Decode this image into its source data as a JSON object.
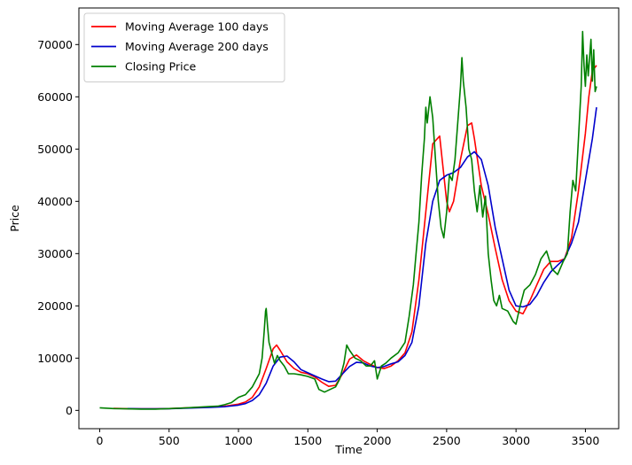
{
  "chart_data": {
    "type": "line",
    "title": "",
    "xlabel": "Time",
    "ylabel": "Price",
    "xlim": [
      -150,
      3740
    ],
    "ylim": [
      -3500,
      77000
    ],
    "xticks": [
      0,
      500,
      1000,
      1500,
      2000,
      2500,
      3000,
      3500
    ],
    "yticks": [
      0,
      10000,
      20000,
      30000,
      40000,
      50000,
      60000,
      70000
    ],
    "legend_position": "top-left",
    "grid": false,
    "series": [
      {
        "name": "Moving Average 100 days",
        "color": "#ff0000",
        "points": [
          [
            100,
            400
          ],
          [
            200,
            330
          ],
          [
            300,
            300
          ],
          [
            400,
            300
          ],
          [
            500,
            350
          ],
          [
            600,
            450
          ],
          [
            700,
            550
          ],
          [
            800,
            650
          ],
          [
            900,
            800
          ],
          [
            1000,
            1200
          ],
          [
            1050,
            1600
          ],
          [
            1100,
            2500
          ],
          [
            1150,
            4500
          ],
          [
            1200,
            8000
          ],
          [
            1250,
            11800
          ],
          [
            1275,
            12500
          ],
          [
            1300,
            11500
          ],
          [
            1350,
            9300
          ],
          [
            1400,
            8000
          ],
          [
            1450,
            7300
          ],
          [
            1500,
            7000
          ],
          [
            1550,
            6400
          ],
          [
            1600,
            5400
          ],
          [
            1650,
            4600
          ],
          [
            1700,
            4800
          ],
          [
            1750,
            7000
          ],
          [
            1800,
            9800
          ],
          [
            1850,
            10600
          ],
          [
            1900,
            9500
          ],
          [
            1950,
            8800
          ],
          [
            2000,
            8200
          ],
          [
            2050,
            8000
          ],
          [
            2100,
            8500
          ],
          [
            2150,
            9500
          ],
          [
            2200,
            11000
          ],
          [
            2250,
            15000
          ],
          [
            2300,
            25000
          ],
          [
            2350,
            38000
          ],
          [
            2400,
            51000
          ],
          [
            2450,
            52500
          ],
          [
            2500,
            40000
          ],
          [
            2520,
            38000
          ],
          [
            2550,
            40000
          ],
          [
            2600,
            48000
          ],
          [
            2650,
            54500
          ],
          [
            2680,
            55000
          ],
          [
            2700,
            52000
          ],
          [
            2750,
            43000
          ],
          [
            2800,
            37500
          ],
          [
            2850,
            31000
          ],
          [
            2900,
            25000
          ],
          [
            2950,
            21000
          ],
          [
            3000,
            19000
          ],
          [
            3050,
            18500
          ],
          [
            3100,
            21000
          ],
          [
            3150,
            24000
          ],
          [
            3200,
            27000
          ],
          [
            3250,
            28500
          ],
          [
            3300,
            28500
          ],
          [
            3350,
            29000
          ],
          [
            3400,
            33000
          ],
          [
            3450,
            42000
          ],
          [
            3500,
            53000
          ],
          [
            3525,
            60000
          ],
          [
            3550,
            65000
          ],
          [
            3580,
            66000
          ]
        ]
      },
      {
        "name": "Moving Average 200 days",
        "color": "#0000cc",
        "points": [
          [
            200,
            350
          ],
          [
            300,
            310
          ],
          [
            400,
            300
          ],
          [
            500,
            330
          ],
          [
            600,
            400
          ],
          [
            700,
            480
          ],
          [
            800,
            580
          ],
          [
            900,
            700
          ],
          [
            1000,
            1000
          ],
          [
            1050,
            1300
          ],
          [
            1100,
            1900
          ],
          [
            1150,
            3000
          ],
          [
            1200,
            5200
          ],
          [
            1250,
            8500
          ],
          [
            1300,
            10200
          ],
          [
            1350,
            10400
          ],
          [
            1400,
            9300
          ],
          [
            1450,
            7800
          ],
          [
            1500,
            7200
          ],
          [
            1550,
            6600
          ],
          [
            1600,
            6000
          ],
          [
            1650,
            5500
          ],
          [
            1700,
            5600
          ],
          [
            1750,
            7000
          ],
          [
            1800,
            8400
          ],
          [
            1850,
            9200
          ],
          [
            1900,
            9100
          ],
          [
            1950,
            8500
          ],
          [
            2000,
            8200
          ],
          [
            2050,
            8400
          ],
          [
            2100,
            8900
          ],
          [
            2150,
            9300
          ],
          [
            2200,
            10500
          ],
          [
            2250,
            13000
          ],
          [
            2300,
            20000
          ],
          [
            2350,
            32000
          ],
          [
            2400,
            40000
          ],
          [
            2450,
            44000
          ],
          [
            2500,
            45000
          ],
          [
            2550,
            45500
          ],
          [
            2600,
            46500
          ],
          [
            2650,
            48500
          ],
          [
            2700,
            49500
          ],
          [
            2750,
            48000
          ],
          [
            2800,
            43000
          ],
          [
            2850,
            35000
          ],
          [
            2900,
            29000
          ],
          [
            2950,
            23000
          ],
          [
            3000,
            20000
          ],
          [
            3050,
            19800
          ],
          [
            3100,
            20300
          ],
          [
            3150,
            22000
          ],
          [
            3200,
            24500
          ],
          [
            3250,
            26500
          ],
          [
            3300,
            27800
          ],
          [
            3350,
            29000
          ],
          [
            3400,
            32000
          ],
          [
            3450,
            36000
          ],
          [
            3500,
            44000
          ],
          [
            3550,
            52000
          ],
          [
            3580,
            58000
          ]
        ]
      },
      {
        "name": "Closing Price",
        "color": "#008000",
        "points": [
          [
            0,
            500
          ],
          [
            100,
            350
          ],
          [
            200,
            300
          ],
          [
            300,
            250
          ],
          [
            400,
            250
          ],
          [
            500,
            350
          ],
          [
            600,
            450
          ],
          [
            700,
            600
          ],
          [
            800,
            750
          ],
          [
            850,
            800
          ],
          [
            900,
            1100
          ],
          [
            950,
            1500
          ],
          [
            1000,
            2500
          ],
          [
            1050,
            3000
          ],
          [
            1100,
            4500
          ],
          [
            1150,
            7000
          ],
          [
            1170,
            10000
          ],
          [
            1185,
            15000
          ],
          [
            1195,
            19000
          ],
          [
            1200,
            19500
          ],
          [
            1210,
            16000
          ],
          [
            1220,
            13000
          ],
          [
            1240,
            11000
          ],
          [
            1260,
            9000
          ],
          [
            1280,
            10500
          ],
          [
            1300,
            9500
          ],
          [
            1330,
            8500
          ],
          [
            1360,
            7000
          ],
          [
            1400,
            7000
          ],
          [
            1450,
            6800
          ],
          [
            1500,
            6500
          ],
          [
            1550,
            6000
          ],
          [
            1580,
            4000
          ],
          [
            1620,
            3500
          ],
          [
            1660,
            4000
          ],
          [
            1700,
            4500
          ],
          [
            1730,
            6000
          ],
          [
            1760,
            9000
          ],
          [
            1780,
            12500
          ],
          [
            1800,
            11500
          ],
          [
            1840,
            10000
          ],
          [
            1880,
            9500
          ],
          [
            1920,
            8500
          ],
          [
            1950,
            8500
          ],
          [
            1980,
            9500
          ],
          [
            2000,
            6000
          ],
          [
            2030,
            8500
          ],
          [
            2060,
            9000
          ],
          [
            2100,
            10000
          ],
          [
            2150,
            11000
          ],
          [
            2200,
            13000
          ],
          [
            2230,
            18000
          ],
          [
            2260,
            24000
          ],
          [
            2280,
            30000
          ],
          [
            2300,
            36000
          ],
          [
            2320,
            45000
          ],
          [
            2340,
            52000
          ],
          [
            2350,
            58000
          ],
          [
            2360,
            55000
          ],
          [
            2380,
            60000
          ],
          [
            2400,
            56000
          ],
          [
            2420,
            48000
          ],
          [
            2440,
            40000
          ],
          [
            2460,
            35000
          ],
          [
            2480,
            33000
          ],
          [
            2500,
            38000
          ],
          [
            2520,
            45000
          ],
          [
            2540,
            44000
          ],
          [
            2560,
            48000
          ],
          [
            2580,
            55000
          ],
          [
            2600,
            62000
          ],
          [
            2610,
            67500
          ],
          [
            2620,
            63000
          ],
          [
            2640,
            58000
          ],
          [
            2660,
            50000
          ],
          [
            2680,
            48000
          ],
          [
            2700,
            42000
          ],
          [
            2720,
            38000
          ],
          [
            2740,
            43000
          ],
          [
            2760,
            37000
          ],
          [
            2780,
            41000
          ],
          [
            2800,
            30000
          ],
          [
            2820,
            25000
          ],
          [
            2840,
            21000
          ],
          [
            2860,
            20000
          ],
          [
            2880,
            22000
          ],
          [
            2900,
            19500
          ],
          [
            2940,
            19000
          ],
          [
            2980,
            17000
          ],
          [
            3000,
            16500
          ],
          [
            3030,
            20000
          ],
          [
            3060,
            23000
          ],
          [
            3100,
            24000
          ],
          [
            3140,
            26000
          ],
          [
            3180,
            29000
          ],
          [
            3220,
            30500
          ],
          [
            3260,
            27000
          ],
          [
            3300,
            26000
          ],
          [
            3340,
            28500
          ],
          [
            3370,
            30000
          ],
          [
            3390,
            38000
          ],
          [
            3410,
            44000
          ],
          [
            3430,
            42000
          ],
          [
            3450,
            52000
          ],
          [
            3470,
            62000
          ],
          [
            3480,
            72500
          ],
          [
            3490,
            66000
          ],
          [
            3500,
            62000
          ],
          [
            3510,
            68000
          ],
          [
            3520,
            64000
          ],
          [
            3540,
            71000
          ],
          [
            3550,
            63000
          ],
          [
            3560,
            69000
          ],
          [
            3570,
            61000
          ],
          [
            3580,
            62000
          ]
        ]
      }
    ]
  }
}
